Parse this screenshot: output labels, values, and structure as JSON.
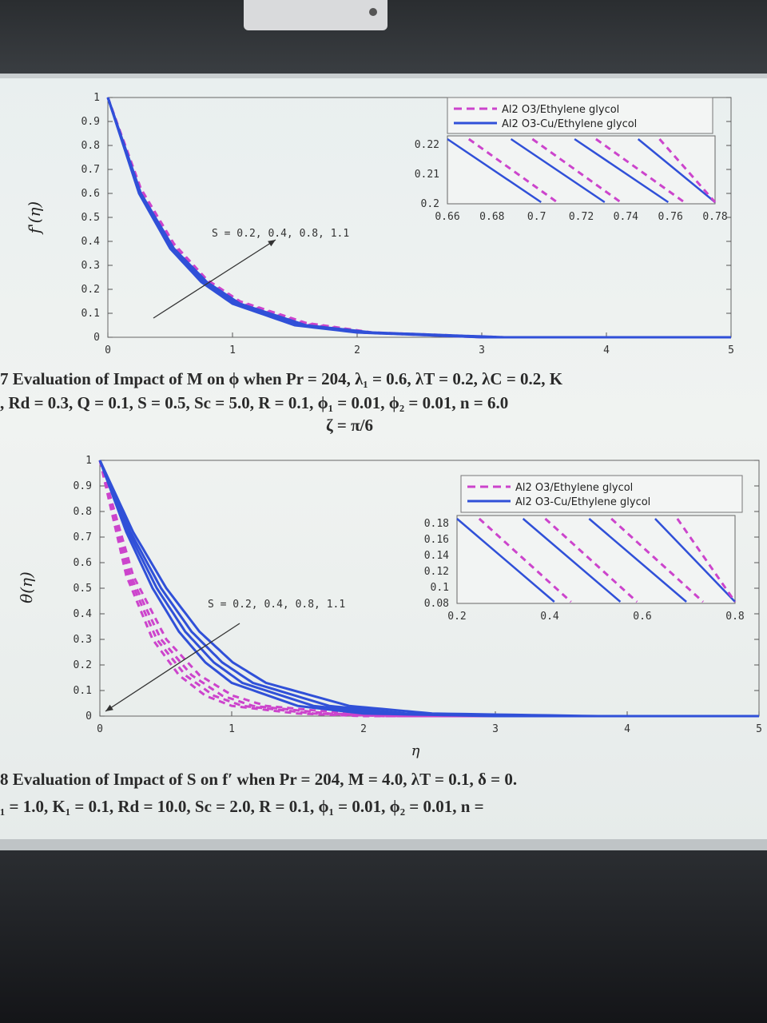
{
  "chart_data": [
    {
      "type": "line",
      "ylabel": "f'(η)",
      "xlabel": "",
      "xlim": [
        0,
        5
      ],
      "ylim": [
        0,
        1
      ],
      "xticks": [
        "0",
        "1",
        "2",
        "3",
        "4",
        "5"
      ],
      "yticks": [
        "0",
        "0.1",
        "0.2",
        "0.3",
        "0.4",
        "0.5",
        "0.6",
        "0.7",
        "0.8",
        "0.9",
        "1"
      ],
      "annotation": "S = 0.2, 0.4, 0.8, 1.1",
      "legend": [
        "Al2 O3/Ethylene glycol",
        "Al2 O3-Cu/Ethylene glycol"
      ],
      "legend_placement": "top-right",
      "series": [
        {
          "name": "Al2 O3/Ethylene glycol",
          "color": "#cc44cc",
          "style": "dashed",
          "x": [
            0,
            0.25,
            0.5,
            0.75,
            1.0,
            1.5,
            2.0,
            3.0,
            4.0,
            5.0
          ],
          "y": [
            1.0,
            0.62,
            0.39,
            0.24,
            0.15,
            0.06,
            0.02,
            0.0,
            0.0,
            0.0
          ]
        },
        {
          "name": "Al2 O3-Cu/Ethylene glycol",
          "color": "#3050d8",
          "style": "solid",
          "x": [
            0,
            0.25,
            0.5,
            0.75,
            1.0,
            1.5,
            2.0,
            3.0,
            4.0,
            5.0
          ],
          "y": [
            1.0,
            0.6,
            0.37,
            0.23,
            0.14,
            0.05,
            0.02,
            0.0,
            0.0,
            0.0
          ]
        }
      ],
      "inset": {
        "xticks": [
          "0.66",
          "0.68",
          "0.7",
          "0.72",
          "0.74",
          "0.76",
          "0.78"
        ],
        "yticks": [
          "0.2",
          "0.21",
          "0.22"
        ],
        "xlim": [
          0.66,
          0.78
        ],
        "ylim": [
          0.2,
          0.223
        ]
      }
    },
    {
      "type": "line",
      "ylabel": "θ(η)",
      "xlabel": "η",
      "xlim": [
        0,
        5
      ],
      "ylim": [
        0,
        1
      ],
      "xticks": [
        "0",
        "1",
        "2",
        "3",
        "4",
        "5"
      ],
      "yticks": [
        "0",
        "0.1",
        "0.2",
        "0.3",
        "0.4",
        "0.5",
        "0.6",
        "0.7",
        "0.8",
        "0.9",
        "1"
      ],
      "annotation": "S = 0.2, 0.4, 0.8, 1.1",
      "legend": [
        "Al2 O3/Ethylene glycol",
        "Al2 O3-Cu/Ethylene glycol"
      ],
      "legend_placement": "top-right",
      "series": [
        {
          "name": "Al2 O3/Ethylene glycol",
          "color": "#cc44cc",
          "style": "dashed",
          "x": [
            0,
            0.2,
            0.4,
            0.6,
            0.8,
            1.0,
            1.5,
            2.0,
            3.0,
            5.0
          ],
          "y": [
            1.0,
            0.55,
            0.3,
            0.16,
            0.08,
            0.04,
            0.01,
            0.0,
            0.0,
            0.0
          ]
        },
        {
          "name": "Al2 O3-Cu/Ethylene glycol",
          "color": "#3050d8",
          "style": "solid",
          "x": [
            0,
            0.2,
            0.4,
            0.6,
            0.8,
            1.0,
            1.5,
            2.0,
            3.0,
            5.0
          ],
          "y": [
            1.0,
            0.72,
            0.5,
            0.33,
            0.21,
            0.13,
            0.04,
            0.01,
            0.0,
            0.0
          ]
        }
      ],
      "inset": {
        "xticks": [
          "0.2",
          "0.4",
          "0.6",
          "0.8"
        ],
        "yticks": [
          "0.08",
          "0.1",
          "0.12",
          "0.14",
          "0.16",
          "0.18"
        ],
        "xlim": [
          0.2,
          0.8
        ],
        "ylim": [
          0.08,
          0.19
        ]
      }
    }
  ],
  "captions": {
    "fig7_line1": "7 Evaluation of Impact of M on ϕ when Pr = 204, λ₁ = 0.6, λT = 0.2, λC = 0.2, K",
    "fig7_line2": ", Rd = 0.3,  Q = 0.1, S = 0.5, Sc = 5.0, R = 0.1, ϕ₁ = 0.01, ϕ₂ = 0.01, n = 6.0",
    "fig7_line3": "ζ = π/6",
    "fig8_line1": "8 Evaluation of Impact of S on f′ when Pr = 204, M = 4.0, λT = 0.1, δ = 0.",
    "fig8_line2": "₁ = 1.0, K₁ = 0.1, Rd = 10.0, Sc = 2.0, R = 0.1, ϕ₁ = 0.01, ϕ₂ = 0.01, n ="
  }
}
